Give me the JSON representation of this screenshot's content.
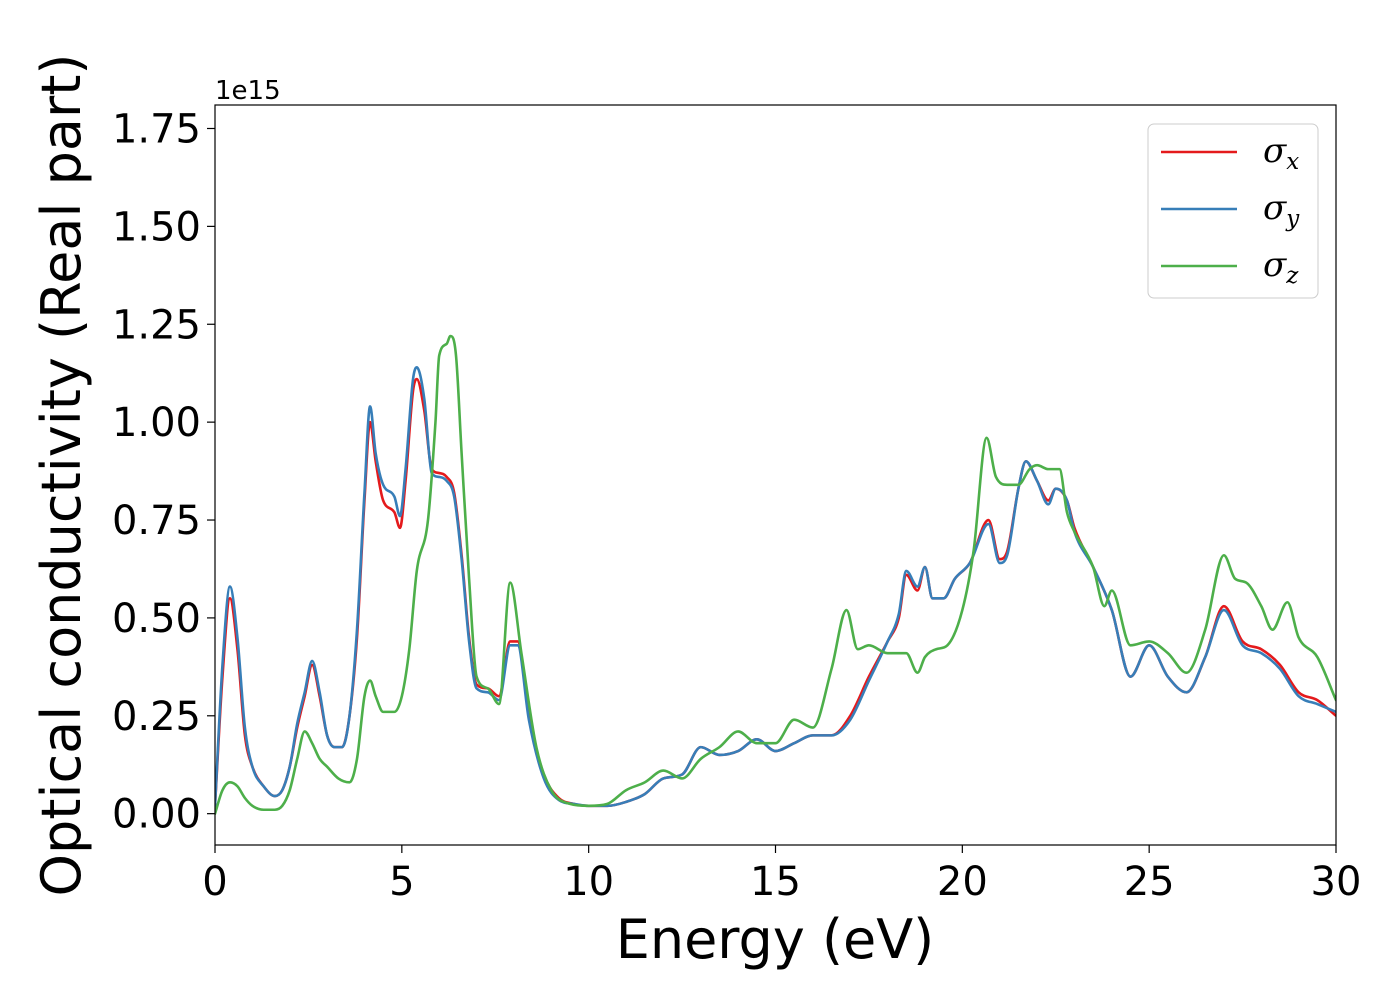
{
  "chart_data": {
    "type": "line",
    "title": "",
    "xlabel": "Energy (eV)",
    "ylabel": "Optical conductivity (Real part)",
    "y_offset_label": "1e15",
    "xlim": [
      0,
      30
    ],
    "ylim": [
      -0.08,
      1.81
    ],
    "x_ticks": [
      0,
      5,
      10,
      15,
      20,
      25,
      30
    ],
    "x_tick_labels": [
      "0",
      "5",
      "10",
      "15",
      "20",
      "25",
      "30"
    ],
    "y_ticks": [
      0.0,
      0.25,
      0.5,
      0.75,
      1.0,
      1.25,
      1.5,
      1.75
    ],
    "y_tick_labels": [
      "0.00",
      "0.25",
      "0.50",
      "0.75",
      "1.00",
      "1.25",
      "1.50",
      "1.75"
    ],
    "grid": false,
    "legend_position": "top-right",
    "series": [
      {
        "name": "σx",
        "legend_symbol": "σ",
        "legend_subscript": "x",
        "color": "#e41a1c",
        "x": [
          0,
          0.2,
          0.4,
          0.6,
          0.8,
          1.0,
          1.3,
          1.6,
          1.8,
          2.0,
          2.2,
          2.4,
          2.6,
          2.8,
          3.0,
          3.2,
          3.4,
          3.6,
          3.8,
          4.0,
          4.15,
          4.3,
          4.5,
          4.8,
          4.95,
          5.1,
          5.3,
          5.4,
          5.6,
          5.8,
          6.0,
          6.2,
          6.4,
          6.6,
          6.8,
          7.0,
          7.3,
          7.6,
          7.9,
          8.1,
          8.4,
          8.8,
          9.2,
          9.6,
          10.0,
          10.5,
          11.0,
          11.5,
          12.0,
          12.5,
          13.0,
          13.5,
          14.0,
          14.5,
          15.0,
          15.5,
          16.0,
          16.5,
          17.0,
          17.5,
          18.0,
          18.3,
          18.5,
          18.8,
          19.0,
          19.2,
          19.5,
          19.8,
          20.2,
          20.7,
          21.0,
          21.2,
          21.5,
          21.7,
          22.0,
          22.3,
          22.5,
          22.8,
          23.0,
          23.5,
          24.0,
          24.5,
          25.0,
          25.5,
          26.0,
          26.5,
          27.0,
          27.5,
          28.0,
          28.5,
          29.0,
          29.5,
          30.0
        ],
        "y": [
          0.02,
          0.35,
          0.55,
          0.42,
          0.2,
          0.12,
          0.07,
          0.045,
          0.06,
          0.12,
          0.22,
          0.3,
          0.38,
          0.3,
          0.2,
          0.17,
          0.17,
          0.25,
          0.45,
          0.8,
          1.0,
          0.9,
          0.8,
          0.77,
          0.73,
          0.85,
          1.08,
          1.11,
          1.03,
          0.88,
          0.87,
          0.86,
          0.82,
          0.66,
          0.45,
          0.33,
          0.32,
          0.3,
          0.44,
          0.44,
          0.25,
          0.1,
          0.04,
          0.025,
          0.02,
          0.02,
          0.03,
          0.05,
          0.09,
          0.1,
          0.17,
          0.15,
          0.16,
          0.19,
          0.16,
          0.18,
          0.2,
          0.2,
          0.25,
          0.35,
          0.44,
          0.5,
          0.61,
          0.57,
          0.63,
          0.55,
          0.55,
          0.6,
          0.64,
          0.75,
          0.65,
          0.67,
          0.83,
          0.9,
          0.85,
          0.8,
          0.83,
          0.8,
          0.73,
          0.63,
          0.52,
          0.35,
          0.43,
          0.35,
          0.31,
          0.4,
          0.53,
          0.44,
          0.42,
          0.38,
          0.31,
          0.29,
          0.25
        ]
      },
      {
        "name": "σy",
        "legend_symbol": "σ",
        "legend_subscript": "y",
        "color": "#377eb8",
        "x": [
          0,
          0.2,
          0.4,
          0.6,
          0.8,
          1.0,
          1.3,
          1.6,
          1.8,
          2.0,
          2.2,
          2.4,
          2.6,
          2.8,
          3.0,
          3.2,
          3.4,
          3.6,
          3.8,
          4.0,
          4.15,
          4.3,
          4.5,
          4.8,
          4.95,
          5.1,
          5.3,
          5.4,
          5.6,
          5.8,
          6.0,
          6.2,
          6.4,
          6.6,
          6.8,
          7.0,
          7.3,
          7.6,
          7.9,
          8.1,
          8.4,
          8.8,
          9.2,
          9.6,
          10.0,
          10.5,
          11.0,
          11.5,
          12.0,
          12.5,
          13.0,
          13.5,
          14.0,
          14.5,
          15.0,
          15.5,
          16.0,
          16.5,
          17.0,
          17.5,
          18.0,
          18.3,
          18.5,
          18.8,
          19.0,
          19.2,
          19.5,
          19.8,
          20.2,
          20.7,
          21.0,
          21.2,
          21.5,
          21.7,
          22.0,
          22.3,
          22.5,
          22.8,
          23.0,
          23.5,
          24.0,
          24.5,
          25.0,
          25.5,
          26.0,
          26.5,
          27.0,
          27.5,
          28.0,
          28.5,
          29.0,
          29.5,
          30.0
        ],
        "y": [
          0.02,
          0.38,
          0.58,
          0.45,
          0.22,
          0.12,
          0.07,
          0.045,
          0.06,
          0.12,
          0.23,
          0.31,
          0.39,
          0.31,
          0.2,
          0.17,
          0.17,
          0.25,
          0.47,
          0.82,
          1.04,
          0.92,
          0.84,
          0.81,
          0.76,
          0.88,
          1.11,
          1.14,
          1.06,
          0.87,
          0.86,
          0.85,
          0.81,
          0.65,
          0.44,
          0.32,
          0.31,
          0.29,
          0.43,
          0.43,
          0.24,
          0.09,
          0.035,
          0.025,
          0.02,
          0.02,
          0.03,
          0.05,
          0.09,
          0.1,
          0.17,
          0.15,
          0.16,
          0.19,
          0.16,
          0.18,
          0.2,
          0.2,
          0.24,
          0.34,
          0.44,
          0.51,
          0.62,
          0.58,
          0.63,
          0.55,
          0.55,
          0.6,
          0.64,
          0.74,
          0.64,
          0.66,
          0.83,
          0.9,
          0.85,
          0.79,
          0.83,
          0.8,
          0.72,
          0.63,
          0.52,
          0.35,
          0.43,
          0.35,
          0.31,
          0.4,
          0.52,
          0.43,
          0.41,
          0.37,
          0.3,
          0.28,
          0.26
        ]
      },
      {
        "name": "σz",
        "legend_symbol": "σ",
        "legend_subscript": "z",
        "color": "#4daf4a",
        "x": [
          0,
          0.2,
          0.4,
          0.6,
          0.8,
          1.0,
          1.3,
          1.6,
          1.8,
          2.0,
          2.2,
          2.4,
          2.6,
          2.8,
          3.0,
          3.3,
          3.6,
          3.8,
          4.0,
          4.15,
          4.3,
          4.5,
          4.8,
          5.0,
          5.2,
          5.4,
          5.7,
          5.9,
          6.0,
          6.2,
          6.3,
          6.45,
          6.6,
          6.8,
          7.0,
          7.3,
          7.6,
          7.9,
          8.2,
          8.6,
          9.0,
          9.5,
          10.0,
          10.5,
          11.0,
          11.5,
          12.0,
          12.5,
          13.0,
          13.5,
          14.0,
          14.5,
          15.0,
          15.5,
          16.0,
          16.5,
          16.9,
          17.2,
          17.5,
          18.0,
          18.5,
          18.8,
          19.0,
          19.3,
          19.6,
          20.0,
          20.3,
          20.65,
          20.9,
          21.2,
          21.5,
          21.8,
          22.0,
          22.3,
          22.6,
          22.8,
          23.0,
          23.5,
          23.8,
          24.0,
          24.5,
          25.0,
          25.5,
          26.0,
          26.5,
          27.0,
          27.3,
          27.6,
          28.0,
          28.3,
          28.7,
          29.0,
          29.5,
          30.0
        ],
        "y": [
          0.0,
          0.06,
          0.08,
          0.07,
          0.04,
          0.02,
          0.01,
          0.01,
          0.02,
          0.06,
          0.14,
          0.21,
          0.18,
          0.14,
          0.12,
          0.09,
          0.08,
          0.14,
          0.3,
          0.34,
          0.3,
          0.26,
          0.26,
          0.3,
          0.42,
          0.62,
          0.75,
          1.0,
          1.17,
          1.2,
          1.22,
          1.17,
          0.92,
          0.6,
          0.35,
          0.32,
          0.28,
          0.59,
          0.41,
          0.17,
          0.06,
          0.025,
          0.02,
          0.025,
          0.06,
          0.08,
          0.11,
          0.09,
          0.14,
          0.17,
          0.21,
          0.18,
          0.18,
          0.24,
          0.22,
          0.37,
          0.52,
          0.42,
          0.43,
          0.41,
          0.41,
          0.36,
          0.4,
          0.42,
          0.43,
          0.52,
          0.67,
          0.96,
          0.86,
          0.84,
          0.84,
          0.88,
          0.89,
          0.88,
          0.88,
          0.77,
          0.72,
          0.63,
          0.53,
          0.57,
          0.43,
          0.44,
          0.41,
          0.36,
          0.47,
          0.66,
          0.6,
          0.59,
          0.53,
          0.47,
          0.54,
          0.45,
          0.4,
          0.29
        ]
      }
    ]
  }
}
